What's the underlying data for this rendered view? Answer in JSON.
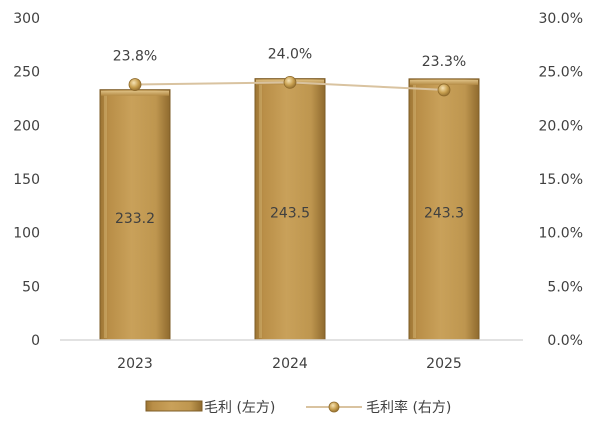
{
  "chart_data": {
    "type": "bar",
    "categories": [
      "2023",
      "2024",
      "2025"
    ],
    "series": [
      {
        "name": "毛利 (左方)",
        "type": "bar",
        "axis": "left",
        "values": [
          233.2,
          243.5,
          243.3
        ],
        "labels": [
          "233.2",
          "243.5",
          "243.3"
        ],
        "color": "#C39A52"
      },
      {
        "name": "毛利率 (右方)",
        "type": "line",
        "axis": "right",
        "values": [
          23.8,
          24.0,
          23.3
        ],
        "labels": [
          "23.8%",
          "24.0%",
          "23.3%"
        ],
        "color": "#D9C3A0"
      }
    ],
    "left_axis": {
      "ylim": [
        0,
        300
      ],
      "ticks": [
        "0",
        "50",
        "100",
        "150",
        "200",
        "250",
        "300"
      ],
      "tick_values": [
        0,
        50,
        100,
        150,
        200,
        250,
        300
      ]
    },
    "right_axis": {
      "ylim": [
        0,
        30
      ],
      "ticks": [
        "0.0%",
        "5.0%",
        "10.0%",
        "15.0%",
        "20.0%",
        "25.0%",
        "30.0%"
      ],
      "tick_values": [
        0,
        5,
        10,
        15,
        20,
        25,
        30
      ]
    },
    "grid": false,
    "legend_position": "bottom-center"
  }
}
